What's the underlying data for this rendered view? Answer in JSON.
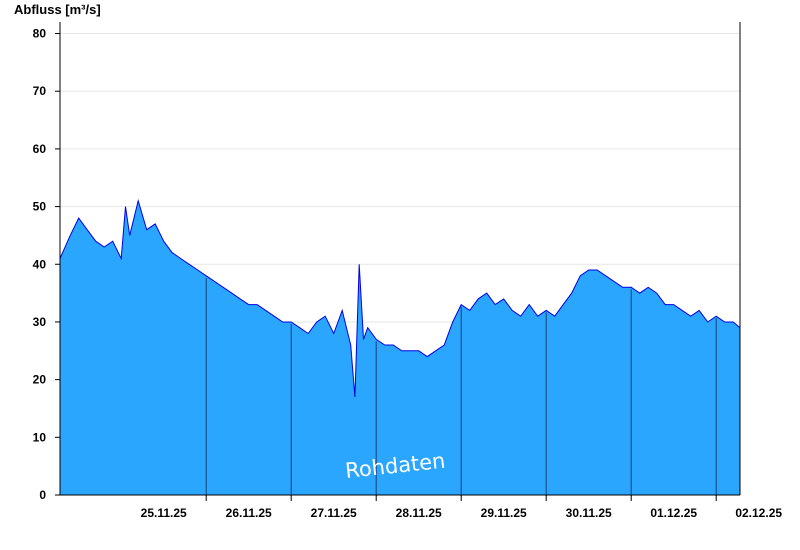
{
  "chart_data": {
    "type": "area",
    "ylabel": "Abfluss [m³/s]",
    "ylim": [
      0,
      82
    ],
    "yticks": [
      0,
      10,
      20,
      30,
      40,
      50,
      60,
      70,
      80
    ],
    "x_start_day_label": "25.11.25",
    "x_unit": "days",
    "xlim": [
      -0.72,
      7.28
    ],
    "day_labels": [
      "25.11.25",
      "26.11.25",
      "27.11.25",
      "28.11.25",
      "29.11.25",
      "30.11.25",
      "01.12.25",
      "02.12.25"
    ],
    "grid": "horizontal",
    "annotation": "Rohdaten",
    "colors": {
      "fill": "#2aa6ff",
      "line": "#0000e6",
      "grid": "#e6e6e6",
      "day_line": "#1d3f73"
    },
    "series": [
      {
        "x": [
          -0.72,
          -0.6,
          -0.5,
          -0.4,
          -0.3,
          -0.2,
          -0.1,
          0.0,
          0.05,
          0.1,
          0.2,
          0.3,
          0.4,
          0.5,
          0.6,
          0.7,
          0.8,
          0.9,
          1.0,
          1.1,
          1.2,
          1.3,
          1.4,
          1.5,
          1.6,
          1.7,
          1.8,
          1.9,
          2.0,
          2.1,
          2.2,
          2.3,
          2.4,
          2.5,
          2.6,
          2.7,
          2.75,
          2.8,
          2.85,
          2.9,
          3.0,
          3.1,
          3.2,
          3.3,
          3.4,
          3.5,
          3.6,
          3.7,
          3.8,
          3.9,
          4.0,
          4.1,
          4.2,
          4.3,
          4.4,
          4.5,
          4.6,
          4.7,
          4.8,
          4.9,
          5.0,
          5.1,
          5.2,
          5.3,
          5.4,
          5.5,
          5.6,
          5.7,
          5.8,
          5.9,
          6.0,
          6.1,
          6.2,
          6.3,
          6.4,
          6.5,
          6.6,
          6.7,
          6.8,
          6.9,
          7.0,
          7.1,
          7.2,
          7.28
        ],
        "y": [
          41,
          45,
          48,
          46,
          44,
          43,
          44,
          41,
          50,
          45,
          51,
          46,
          47,
          44,
          42,
          41,
          40,
          39,
          38,
          37,
          36,
          35,
          34,
          33,
          33,
          32,
          31,
          30,
          30,
          29,
          28,
          30,
          31,
          28,
          32,
          26,
          17,
          40,
          27,
          29,
          27,
          26,
          26,
          25,
          25,
          25,
          24,
          25,
          26,
          30,
          33,
          32,
          34,
          35,
          33,
          34,
          32,
          31,
          33,
          31,
          32,
          31,
          33,
          35,
          38,
          39,
          39,
          38,
          37,
          36,
          36,
          35,
          36,
          35,
          33,
          33,
          32,
          31,
          32,
          30,
          31,
          30,
          30,
          29
        ]
      }
    ]
  }
}
